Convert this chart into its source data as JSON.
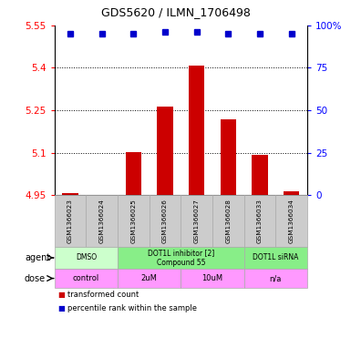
{
  "title": "GDS5620 / ILMN_1706498",
  "samples": [
    "GSM1366023",
    "GSM1366024",
    "GSM1366025",
    "GSM1366026",
    "GSM1366027",
    "GSM1366028",
    "GSM1366033",
    "GSM1366034"
  ],
  "bar_values": [
    4.957,
    4.952,
    5.102,
    5.262,
    5.408,
    5.218,
    5.093,
    4.965
  ],
  "percentile_values": [
    95,
    95,
    95,
    96,
    96,
    95,
    95,
    95
  ],
  "ylim": [
    4.95,
    5.55
  ],
  "yticks_left": [
    4.95,
    5.1,
    5.25,
    5.4,
    5.55
  ],
  "yticks_right": [
    0,
    25,
    50,
    75,
    100
  ],
  "bar_color": "#cc0000",
  "dot_color": "#0000cc",
  "agent_groups": [
    {
      "label": "DMSO",
      "start": 0,
      "end": 2,
      "color": "#ccffcc"
    },
    {
      "label": "DOT1L inhibitor [2]\nCompound 55",
      "start": 2,
      "end": 6,
      "color": "#88ee88"
    },
    {
      "label": "DOT1L siRNA",
      "start": 6,
      "end": 8,
      "color": "#88ee88"
    }
  ],
  "dose_groups": [
    {
      "label": "control",
      "start": 0,
      "end": 2,
      "color": "#ff99ff"
    },
    {
      "label": "2uM",
      "start": 2,
      "end": 4,
      "color": "#ff99ff"
    },
    {
      "label": "10uM",
      "start": 4,
      "end": 6,
      "color": "#ff99ff"
    },
    {
      "label": "n/a",
      "start": 6,
      "end": 8,
      "color": "#ff99ff"
    }
  ],
  "legend_items": [
    {
      "color": "#cc0000",
      "label": "transformed count"
    },
    {
      "color": "#0000cc",
      "label": "percentile rank within the sample"
    }
  ],
  "sample_box_color": "#cccccc",
  "bar_width": 0.5
}
